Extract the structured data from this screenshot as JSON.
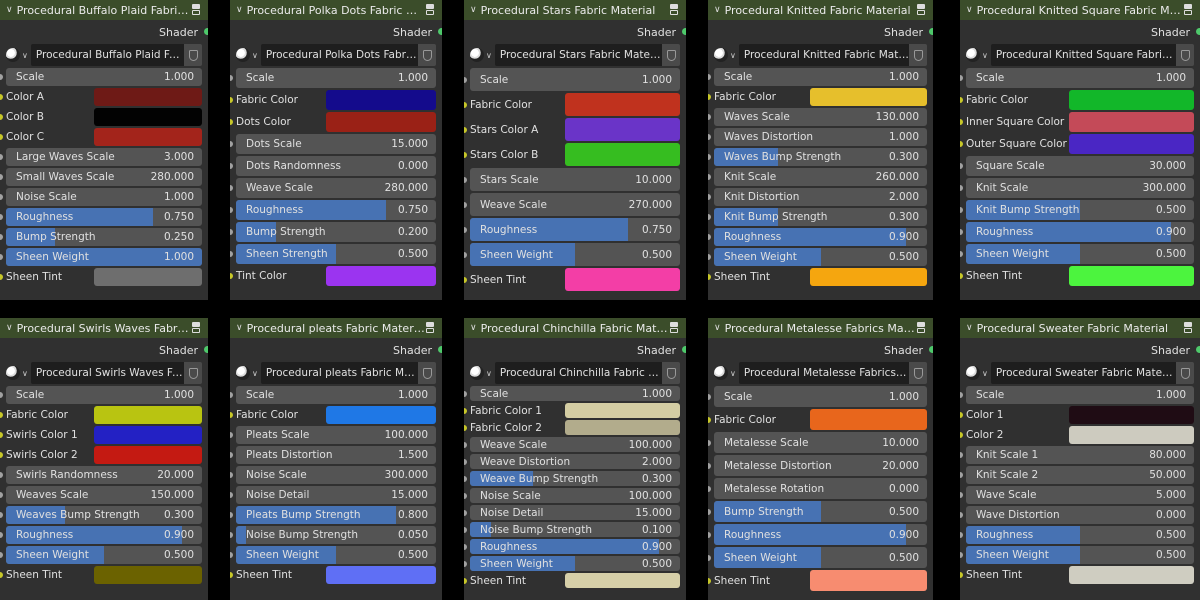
{
  "common": {
    "output_label": "Shader"
  },
  "panels": [
    {
      "title": "Procedural Buffalo Plaid Fabric Material",
      "material": "Procedural Buffalo Plaid Fabric Material",
      "rows": [
        {
          "type": "slider",
          "label": "Scale",
          "value": "1.000",
          "fill": 0
        },
        {
          "type": "color",
          "label": "Color A",
          "color": "#6e1a16"
        },
        {
          "type": "color",
          "label": "Color B",
          "color": "#020202"
        },
        {
          "type": "color",
          "label": "Color C",
          "color": "#a3241b"
        },
        {
          "type": "slider",
          "label": "Large Waves Scale",
          "value": "3.000",
          "fill": 0
        },
        {
          "type": "slider",
          "label": "Small Waves Scale",
          "value": "280.000",
          "fill": 0
        },
        {
          "type": "slider",
          "label": "Noise Scale",
          "value": "1.000",
          "fill": 0
        },
        {
          "type": "slider",
          "label": "Roughness",
          "value": "0.750",
          "fill": 0.75
        },
        {
          "type": "slider",
          "label": "Bump Strength",
          "value": "0.250",
          "fill": 0.25
        },
        {
          "type": "slider",
          "label": "Sheen Weight",
          "value": "1.000",
          "fill": 1
        },
        {
          "type": "color",
          "label": "Sheen Tint",
          "color": "#6e6e6e"
        }
      ]
    },
    {
      "title": "Procedural Polka Dots Fabric Material",
      "material": "Procedural Polka Dots Fabric Mate...",
      "rows": [
        {
          "type": "slider",
          "label": "Scale",
          "value": "1.000",
          "fill": 0
        },
        {
          "type": "color",
          "label": "Fabric Color",
          "color": "#140b8c"
        },
        {
          "type": "color",
          "label": "Dots Color",
          "color": "#9a2116"
        },
        {
          "type": "slider",
          "label": "Dots Scale",
          "value": "15.000",
          "fill": 0
        },
        {
          "type": "slider",
          "label": "Dots Randomness",
          "value": "0.000",
          "fill": 0
        },
        {
          "type": "slider",
          "label": "Weave Scale",
          "value": "280.000",
          "fill": 0
        },
        {
          "type": "slider",
          "label": "Roughness",
          "value": "0.750",
          "fill": 0.75
        },
        {
          "type": "slider",
          "label": "Bump Strength",
          "value": "0.200",
          "fill": 0.2
        },
        {
          "type": "slider",
          "label": "Sheen Strength",
          "value": "0.500",
          "fill": 0.5
        },
        {
          "type": "color",
          "label": "Tint Color",
          "color": "#9b34f0"
        }
      ]
    },
    {
      "title": "Procedural Stars Fabric Material",
      "material": "Procedural Stars Fabric Material",
      "rows": [
        {
          "type": "slider",
          "label": "Scale",
          "value": "1.000",
          "fill": 0
        },
        {
          "type": "color",
          "label": "Fabric Color",
          "color": "#c0321e"
        },
        {
          "type": "color",
          "label": "Stars Color A",
          "color": "#6a34c8"
        },
        {
          "type": "color",
          "label": "Stars Color B",
          "color": "#36bd20"
        },
        {
          "type": "slider",
          "label": "Stars Scale",
          "value": "10.000",
          "fill": 0
        },
        {
          "type": "slider",
          "label": "Weave Scale",
          "value": "270.000",
          "fill": 0
        },
        {
          "type": "slider",
          "label": "Roughness",
          "value": "0.750",
          "fill": 0.75
        },
        {
          "type": "slider",
          "label": "Sheen Weight",
          "value": "0.500",
          "fill": 0.5
        },
        {
          "type": "color",
          "label": "Sheen Tint",
          "color": "#f33ea6"
        }
      ]
    },
    {
      "title": "Procedural Knitted Fabric Material",
      "material": "Procedural Knitted Fabric Material",
      "rows": [
        {
          "type": "slider",
          "label": "Scale",
          "value": "1.000",
          "fill": 0
        },
        {
          "type": "color",
          "label": "Fabric Color",
          "color": "#e6bf2c"
        },
        {
          "type": "slider",
          "label": "Waves Scale",
          "value": "130.000",
          "fill": 0
        },
        {
          "type": "slider",
          "label": "Waves Distortion",
          "value": "1.000",
          "fill": 0
        },
        {
          "type": "slider",
          "label": "Waves Bump Strength",
          "value": "0.300",
          "fill": 0.3
        },
        {
          "type": "slider",
          "label": "Knit Scale",
          "value": "260.000",
          "fill": 0
        },
        {
          "type": "slider",
          "label": "Knit Distortion",
          "value": "2.000",
          "fill": 0
        },
        {
          "type": "slider",
          "label": "Knit Bump Strength",
          "value": "0.300",
          "fill": 0.3
        },
        {
          "type": "slider",
          "label": "Roughness",
          "value": "0.900",
          "fill": 0.9
        },
        {
          "type": "slider",
          "label": "Sheen Weight",
          "value": "0.500",
          "fill": 0.5
        },
        {
          "type": "color",
          "label": "Sheen Tint",
          "color": "#f5a60f"
        }
      ]
    },
    {
      "title": "Procedural Knitted Square Fabric Material",
      "material": "Procedural Knitted Square Fabric Material",
      "rows": [
        {
          "type": "slider",
          "label": "Scale",
          "value": "1.000",
          "fill": 0
        },
        {
          "type": "color",
          "label": "Fabric Color",
          "color": "#12b729"
        },
        {
          "type": "color",
          "label": "Inner Square Color",
          "color": "#c44a58"
        },
        {
          "type": "color",
          "label": "Outer Square Color",
          "color": "#4a26c4"
        },
        {
          "type": "slider",
          "label": "Square Scale",
          "value": "30.000",
          "fill": 0
        },
        {
          "type": "slider",
          "label": "Knit Scale",
          "value": "300.000",
          "fill": 0
        },
        {
          "type": "slider",
          "label": "Knit Bump Strength",
          "value": "0.500",
          "fill": 0.5
        },
        {
          "type": "slider",
          "label": "Roughness",
          "value": "0.900",
          "fill": 0.9
        },
        {
          "type": "slider",
          "label": "Sheen Weight",
          "value": "0.500",
          "fill": 0.5
        },
        {
          "type": "color",
          "label": "Sheen Tint",
          "color": "#4cf43e"
        }
      ]
    },
    {
      "title": "Procedural Swirls Waves Fabric Material",
      "material": "Procedural Swirls Waves Fabric Material",
      "rows": [
        {
          "type": "slider",
          "label": "Scale",
          "value": "1.000",
          "fill": 0
        },
        {
          "type": "color",
          "label": "Fabric Color",
          "color": "#b9c411"
        },
        {
          "type": "color",
          "label": "Swirls Color 1",
          "color": "#2321c4"
        },
        {
          "type": "color",
          "label": "Swirls Color 2",
          "color": "#c41a12"
        },
        {
          "type": "slider",
          "label": "Swirls Randomness",
          "value": "20.000",
          "fill": 0
        },
        {
          "type": "slider",
          "label": "Weaves Scale",
          "value": "150.000",
          "fill": 0
        },
        {
          "type": "slider",
          "label": "Weaves Bump Strength",
          "value": "0.300",
          "fill": 0.3
        },
        {
          "type": "slider",
          "label": "Roughness",
          "value": "0.900",
          "fill": 0.9
        },
        {
          "type": "slider",
          "label": "Sheen Weight",
          "value": "0.500",
          "fill": 0.5
        },
        {
          "type": "color",
          "label": "Sheen Tint",
          "color": "#6b6200"
        }
      ]
    },
    {
      "title": "Procedural pleats Fabric Material",
      "material": "Procedural pleats Fabric Material",
      "rows": [
        {
          "type": "slider",
          "label": "Scale",
          "value": "1.000",
          "fill": 0
        },
        {
          "type": "color",
          "label": "Fabric Color",
          "color": "#1f78e6"
        },
        {
          "type": "slider",
          "label": "Pleats Scale",
          "value": "100.000",
          "fill": 0
        },
        {
          "type": "slider",
          "label": "Pleats Distortion",
          "value": "1.500",
          "fill": 0
        },
        {
          "type": "slider",
          "label": "Noise Scale",
          "value": "300.000",
          "fill": 0
        },
        {
          "type": "slider",
          "label": "Noise Detail",
          "value": "15.000",
          "fill": 0
        },
        {
          "type": "slider",
          "label": "Pleats Bump Strength",
          "value": "0.800",
          "fill": 0.8
        },
        {
          "type": "slider",
          "label": "Noise Bump Strength",
          "value": "0.050",
          "fill": 0.05
        },
        {
          "type": "slider",
          "label": "Sheen Weight",
          "value": "0.500",
          "fill": 0.5
        },
        {
          "type": "color",
          "label": "Sheen Tint",
          "color": "#5f6ff5"
        }
      ]
    },
    {
      "title": "Procedural Chinchilla Fabric Material",
      "material": "Procedural Chinchilla Fabric Material",
      "rows": [
        {
          "type": "slider",
          "label": "Scale",
          "value": "1.000",
          "fill": 0
        },
        {
          "type": "color",
          "label": "Fabric Color 1",
          "color": "#d4cda3"
        },
        {
          "type": "color",
          "label": "Fabric Color 2",
          "color": "#b2ac8c"
        },
        {
          "type": "slider",
          "label": "Weave Scale",
          "value": "100.000",
          "fill": 0
        },
        {
          "type": "slider",
          "label": "Weave Distortion",
          "value": "2.000",
          "fill": 0
        },
        {
          "type": "slider",
          "label": "Weave Bump Strength",
          "value": "0.300",
          "fill": 0.3
        },
        {
          "type": "slider",
          "label": "Noise Scale",
          "value": "100.000",
          "fill": 0
        },
        {
          "type": "slider",
          "label": "Noise Detail",
          "value": "15.000",
          "fill": 0
        },
        {
          "type": "slider",
          "label": "Noise Bump Strength",
          "value": "0.100",
          "fill": 0.1
        },
        {
          "type": "slider",
          "label": "Roughness",
          "value": "0.900",
          "fill": 0.9
        },
        {
          "type": "slider",
          "label": "Sheen Weight",
          "value": "0.500",
          "fill": 0.5
        },
        {
          "type": "color",
          "label": "Sheen Tint",
          "color": "#d6cfa8"
        }
      ]
    },
    {
      "title": "Procedural Metalesse Fabrics Material",
      "material": "Procedural Metalesse Fabrics Material",
      "rows": [
        {
          "type": "slider",
          "label": "Scale",
          "value": "1.000",
          "fill": 0
        },
        {
          "type": "color",
          "label": "Fabric Color",
          "color": "#e8661c"
        },
        {
          "type": "slider",
          "label": "Metalesse  Scale",
          "value": "10.000",
          "fill": 0
        },
        {
          "type": "slider",
          "label": "Metalesse  Distortion",
          "value": "20.000",
          "fill": 0
        },
        {
          "type": "slider",
          "label": "Metalesse  Rotation",
          "value": "0.000",
          "fill": 0
        },
        {
          "type": "slider",
          "label": "Bump Strength",
          "value": "0.500",
          "fill": 0.5
        },
        {
          "type": "slider",
          "label": "Roughness",
          "value": "0.900",
          "fill": 0.9
        },
        {
          "type": "slider",
          "label": "Sheen Weight",
          "value": "0.500",
          "fill": 0.5
        },
        {
          "type": "color",
          "label": "Sheen Tint",
          "color": "#f78c70"
        }
      ]
    },
    {
      "title": "Procedural Sweater Fabric Material",
      "material": "Procedural Sweater Fabric Material",
      "rows": [
        {
          "type": "slider",
          "label": "Scale",
          "value": "1.000",
          "fill": 0
        },
        {
          "type": "color",
          "label": "Color 1",
          "color": "#1f0c14"
        },
        {
          "type": "color",
          "label": "Color 2",
          "color": "#cdcbbf"
        },
        {
          "type": "slider",
          "label": "Knit Scale 1",
          "value": "80.000",
          "fill": 0
        },
        {
          "type": "slider",
          "label": "Knit Scale 2",
          "value": "50.000",
          "fill": 0
        },
        {
          "type": "slider",
          "label": "Wave Scale",
          "value": "5.000",
          "fill": 0
        },
        {
          "type": "slider",
          "label": "Wave Distortion",
          "value": "0.000",
          "fill": 0
        },
        {
          "type": "slider",
          "label": "Roughness",
          "value": "0.500",
          "fill": 0.5
        },
        {
          "type": "slider",
          "label": "Sheen Weight",
          "value": "0.500",
          "fill": 0.5
        },
        {
          "type": "color",
          "label": "Sheen Tint",
          "color": "#cfcdc1"
        }
      ]
    }
  ]
}
